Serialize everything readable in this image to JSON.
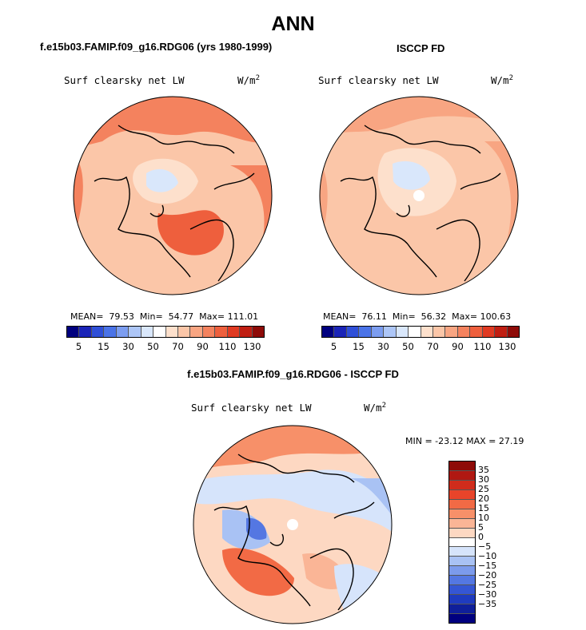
{
  "title": "ANN",
  "panels": {
    "left": {
      "case_name": "f.e15b03.FAMIP.f09_g16.RDG06 (yrs 1980-1999)",
      "field": "Surf clearsky net LW",
      "units": "W/m",
      "units_sup": "2",
      "stats": {
        "mean_label": "MEAN=",
        "mean": "79.53",
        "min_label": "Min=",
        "min": "54.77",
        "max_label": "Max=",
        "max": "111.01"
      }
    },
    "right": {
      "case_name": "ISCCP FD",
      "field": "Surf clearsky net LW",
      "units": "W/m",
      "units_sup": "2",
      "stats": {
        "mean_label": "MEAN=",
        "mean": "76.11",
        "min_label": "Min=",
        "min": "56.32",
        "max_label": "Max=",
        "max": "100.63"
      }
    },
    "diff": {
      "case_name": "f.e15b03.FAMIP.f09_g16.RDG06 - ISCCP FD",
      "field": "Surf clearsky net LW",
      "units": "W/m",
      "units_sup": "2",
      "min_max": "MIN = -23.12 MAX =  27.19"
    }
  },
  "colorbar_abs": {
    "ticks": [
      "5",
      "15",
      "30",
      "50",
      "70",
      "90",
      "110",
      "130"
    ],
    "colors": [
      "#00007f",
      "#1a24b8",
      "#2f4fd8",
      "#4a73e8",
      "#7c9df0",
      "#adc6f7",
      "#d9e7fb",
      "#ffffff",
      "#fde0cc",
      "#fbc6a8",
      "#f8a582",
      "#f4825e",
      "#ee5f3d",
      "#e03a22",
      "#c01e12",
      "#8e0b08"
    ]
  },
  "colorbar_diff": {
    "ticks": [
      "35",
      "30",
      "25",
      "20",
      "15",
      "10",
      "5",
      "0",
      "−5",
      "−10",
      "−15",
      "−20",
      "−25",
      "−30",
      "−35"
    ],
    "colors": [
      "#8e0b08",
      "#b01812",
      "#d02c1c",
      "#e8442a",
      "#f26a45",
      "#f79069",
      "#fab596",
      "#fdd8c2",
      "#ffffff",
      "#d6e4fb",
      "#a9c2f4",
      "#7c9bec",
      "#5477e2",
      "#3556d4",
      "#1f3bbf",
      "#0f1f9a",
      "#00007f"
    ]
  }
}
